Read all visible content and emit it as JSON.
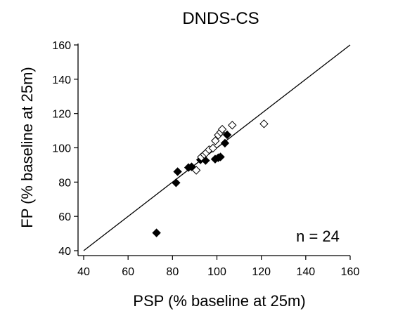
{
  "chart_data": {
    "type": "scatter",
    "title": "DNDS-CS",
    "xlabel": "PSP (% baseline at 25m)",
    "ylabel": "FP (% baseline at 25m)",
    "xlim": [
      40,
      160
    ],
    "ylim": [
      40,
      160
    ],
    "xticks": [
      40,
      60,
      80,
      100,
      120,
      140,
      160
    ],
    "yticks": [
      40,
      60,
      80,
      100,
      120,
      140,
      160
    ],
    "x_tick_labels": [
      "40",
      "60",
      "80",
      "100",
      "120",
      "140",
      "160"
    ],
    "y_tick_labels": [
      "40",
      "60",
      "80",
      "100",
      "120",
      "140",
      "160"
    ],
    "grid": false,
    "annotation": "n = 24",
    "reference_line": {
      "from": [
        40,
        40
      ],
      "to": [
        160,
        160
      ]
    },
    "series": [
      {
        "marker": "filled-diamond",
        "color": "#000000",
        "points": [
          {
            "x": 72.8,
            "y": 50.4
          },
          {
            "x": 81.6,
            "y": 79.6
          },
          {
            "x": 82.3,
            "y": 86.1
          },
          {
            "x": 87.2,
            "y": 88.5
          },
          {
            "x": 88.6,
            "y": 88.9
          },
          {
            "x": 92.6,
            "y": 93.0
          },
          {
            "x": 94.9,
            "y": 92.6
          },
          {
            "x": 99.2,
            "y": 93.4
          },
          {
            "x": 100.6,
            "y": 94.2
          },
          {
            "x": 101.6,
            "y": 94.7
          },
          {
            "x": 103.6,
            "y": 102.7
          },
          {
            "x": 104.6,
            "y": 107.6
          }
        ]
      },
      {
        "marker": "open-diamond",
        "color": "#000000",
        "points": [
          {
            "x": 90.7,
            "y": 86.9
          },
          {
            "x": 93.0,
            "y": 94.6
          },
          {
            "x": 94.3,
            "y": 96.1
          },
          {
            "x": 95.2,
            "y": 97.1
          },
          {
            "x": 96.5,
            "y": 98.9
          },
          {
            "x": 98.2,
            "y": 99.8
          },
          {
            "x": 99.3,
            "y": 104.1
          },
          {
            "x": 100.6,
            "y": 107.4
          },
          {
            "x": 101.7,
            "y": 109.1
          },
          {
            "x": 102.4,
            "y": 110.8
          },
          {
            "x": 106.9,
            "y": 113.2
          },
          {
            "x": 121.2,
            "y": 114.0
          }
        ]
      }
    ]
  }
}
